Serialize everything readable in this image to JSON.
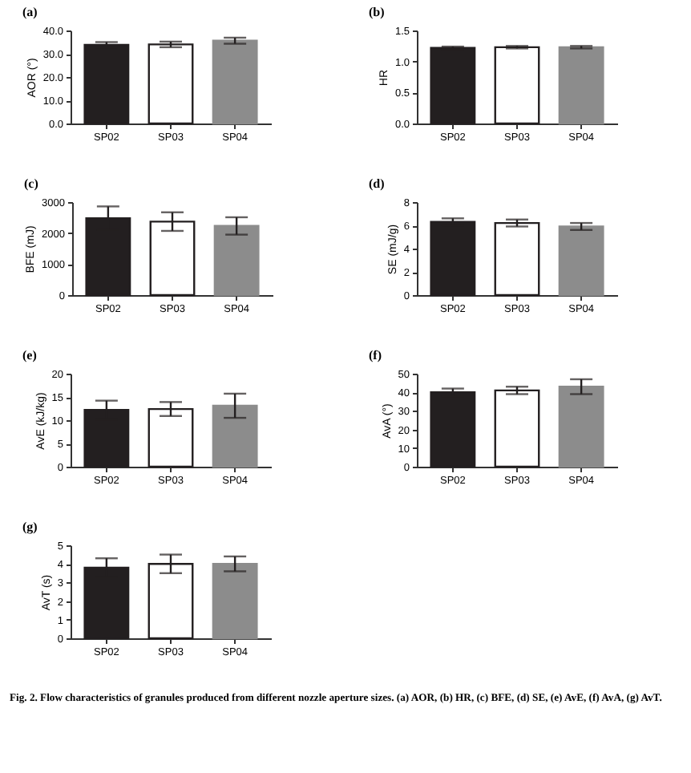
{
  "chart_data": [
    {
      "type": "bar",
      "title": "(a)",
      "ylabel": "AOR (°)",
      "categories": [
        "SP02",
        "SP03",
        "SP04"
      ],
      "colors": [
        "#231f20",
        "#ffffff",
        "#8c8c8c"
      ],
      "values": [
        33.8,
        34.0,
        35.6
      ],
      "errors": [
        1.2,
        1.2,
        1.3
      ],
      "ylim": [
        0,
        40
      ],
      "yticks": [
        {
          "value": 0,
          "label": "0.0"
        },
        {
          "value": 10,
          "label": "10.0"
        },
        {
          "value": 20,
          "label": "20.0"
        },
        {
          "value": 30,
          "label": "30.0"
        },
        {
          "value": 40,
          "label": "40.0"
        }
      ]
    },
    {
      "type": "bar",
      "title": "(b)",
      "ylabel": "HR",
      "categories": [
        "SP02",
        "SP03",
        "SP04"
      ],
      "colors": [
        "#231f20",
        "#ffffff",
        "#8c8c8c"
      ],
      "values": [
        1.22,
        1.23,
        1.23
      ],
      "errors": [
        0.02,
        0.02,
        0.02
      ],
      "ylim": [
        0,
        1.5
      ],
      "yticks": [
        {
          "value": 0,
          "label": "0.0"
        },
        0.5,
        {
          "value": 1,
          "label": "1.0"
        },
        1.5
      ]
    },
    {
      "type": "bar",
      "title": "(c)",
      "ylabel": "BFE (mJ)",
      "categories": [
        "SP02",
        "SP03",
        "SP04"
      ],
      "colors": [
        "#231f20",
        "#ffffff",
        "#8c8c8c"
      ],
      "values": [
        2480,
        2370,
        2230
      ],
      "errors": [
        380,
        300,
        280
      ],
      "ylim": [
        0,
        3000
      ],
      "yticks": [
        0,
        1000,
        2000,
        3000
      ]
    },
    {
      "type": "bar",
      "title": "(d)",
      "ylabel": "SE (mJ/g)",
      "categories": [
        "SP02",
        "SP03",
        "SP04"
      ],
      "colors": [
        "#231f20",
        "#ffffff",
        "#8c8c8c"
      ],
      "values": [
        6.3,
        6.2,
        5.9
      ],
      "errors": [
        0.3,
        0.3,
        0.3
      ],
      "ylim": [
        0,
        8
      ],
      "yticks": [
        0,
        2,
        4,
        6,
        8
      ]
    },
    {
      "type": "bar",
      "title": "(e)",
      "ylabel": "AvE (kJ/kg)",
      "categories": [
        "SP02",
        "SP03",
        "SP04"
      ],
      "colors": [
        "#231f20",
        "#ffffff",
        "#8c8c8c"
      ],
      "values": [
        12.2,
        12.4,
        13.1
      ],
      "errors": [
        2.0,
        1.5,
        2.6
      ],
      "ylim": [
        0,
        20
      ],
      "yticks": [
        0,
        5,
        10,
        15,
        20
      ]
    },
    {
      "type": "bar",
      "title": "(f)",
      "ylabel": "AvA (°)",
      "categories": [
        "SP02",
        "SP03",
        "SP04"
      ],
      "colors": [
        "#231f20",
        "#ffffff",
        "#8c8c8c"
      ],
      "values": [
        40,
        41,
        43
      ],
      "errors": [
        2,
        2,
        4
      ],
      "ylim": [
        0,
        50
      ],
      "yticks": [
        0,
        10,
        20,
        30,
        40,
        50
      ]
    },
    {
      "type": "bar",
      "title": "(g)",
      "ylabel": "AvT (s)",
      "categories": [
        "SP02",
        "SP03",
        "SP04"
      ],
      "colors": [
        "#231f20",
        "#ffffff",
        "#8c8c8c"
      ],
      "values": [
        3.8,
        4.0,
        4.0
      ],
      "errors": [
        0.5,
        0.5,
        0.4
      ],
      "ylim": [
        0,
        5
      ],
      "yticks": [
        0,
        1,
        2,
        3,
        4,
        5
      ],
      "annotations": [
        "Fig. 2. Flow characteristics of granules produced from different nozzle aperture sizes. (a) AOR, (b) HR, (c) BFE, (d) SE, (e) AvE, (f) AvA, (g) AvT."
      ]
    }
  ]
}
